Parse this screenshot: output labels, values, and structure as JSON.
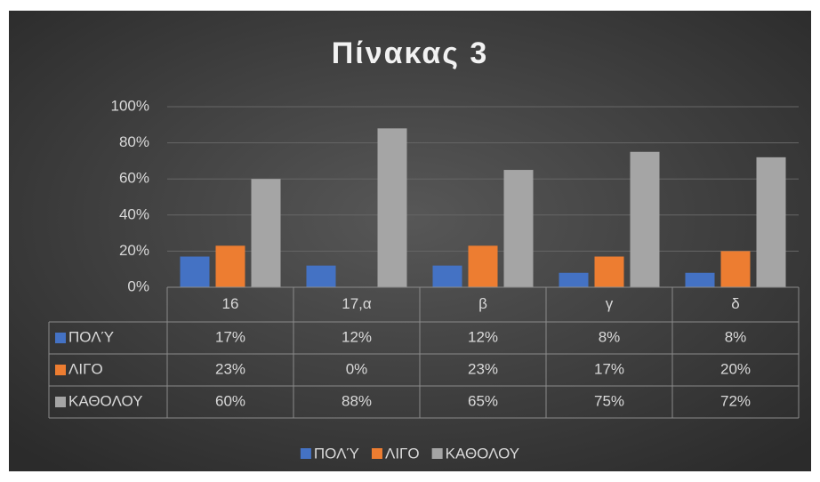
{
  "chart_data": {
    "type": "bar",
    "title": "Πίνακας 3",
    "categories": [
      "16",
      "17,α",
      "β",
      "γ",
      "δ"
    ],
    "series": [
      {
        "name": "ΠΟΛΎ",
        "color": "#4472c4",
        "values": [
          17,
          12,
          12,
          8,
          8
        ],
        "value_labels": [
          "17%",
          "12%",
          "12%",
          "8%",
          "8%"
        ]
      },
      {
        "name": "ΛΙΓΟ",
        "color": "#ed7d31",
        "values": [
          23,
          0,
          23,
          17,
          20
        ],
        "value_labels": [
          "23%",
          "0%",
          "23%",
          "17%",
          "20%"
        ]
      },
      {
        "name": "ΚΑΘΟΛΟΥ",
        "color": "#a5a5a5",
        "values": [
          60,
          88,
          65,
          75,
          72
        ],
        "value_labels": [
          "60%",
          "88%",
          "65%",
          "75%",
          "72%"
        ]
      }
    ],
    "ylim": [
      0,
      100
    ],
    "yticks": [
      {
        "value": 0,
        "label": "0%"
      },
      {
        "value": 20,
        "label": "20%"
      },
      {
        "value": 40,
        "label": "40%"
      },
      {
        "value": 60,
        "label": "60%"
      },
      {
        "value": 80,
        "label": "80%"
      },
      {
        "value": 100,
        "label": "100%"
      }
    ],
    "grid": true,
    "legend": "bottom"
  }
}
